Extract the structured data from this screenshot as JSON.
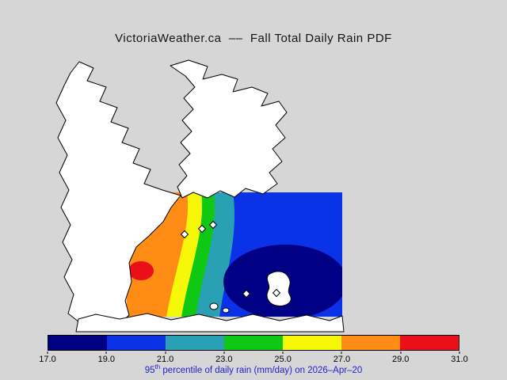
{
  "title": "VictoriaWeather.ca  ––  Fall Total Daily Rain PDF",
  "colorbar": {
    "ticks": [
      "17.0",
      "19.0",
      "21.0",
      "23.0",
      "25.0",
      "27.0",
      "29.0",
      "31.0"
    ],
    "colors": [
      "#000085",
      "#0a32e6",
      "#2aa0b4",
      "#0fc814",
      "#f7f70a",
      "#ff8c14",
      "#eb0f19"
    ]
  },
  "caption": {
    "base": "95",
    "sup": "th",
    "rest": " percentile of daily rain (mm/day) on 2026–Apr–20",
    "color": "#2020cd"
  },
  "chart_data": {
    "type": "heatmap",
    "title": "VictoriaWeather.ca -- Fall Total Daily Rain PDF",
    "variable": "95th percentile of daily rain",
    "units": "mm/day",
    "date": "2026-Apr-20",
    "levels": [
      17.0,
      19.0,
      21.0,
      23.0,
      25.0,
      27.0,
      29.0,
      31.0
    ],
    "palette": [
      "#000085",
      "#0a32e6",
      "#2aa0b4",
      "#0fc814",
      "#f7f70a",
      "#ff8c14",
      "#eb0f19"
    ],
    "legend_position": "bottom",
    "notes": "Filled contour field over coastal map; values increase westward from dark blue (17 mm/day) in the southeast to a red maximum (31 mm/day) at the far west of the field"
  }
}
